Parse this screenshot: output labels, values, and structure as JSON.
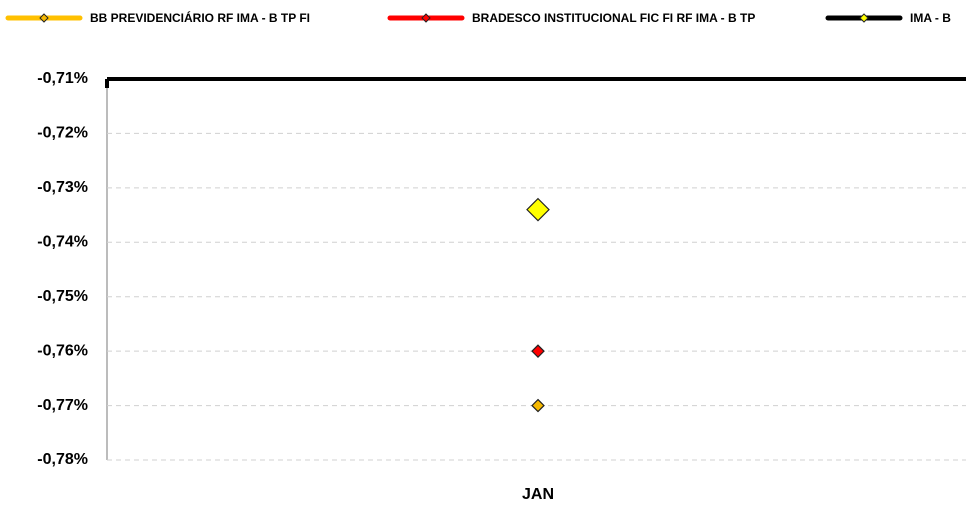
{
  "chart_data": {
    "type": "line",
    "categories": [
      "JAN"
    ],
    "series": [
      {
        "name": "BB PREVIDENCIÁRIO RF IMA - B TP FI",
        "color": "#ffc000",
        "marker_color": "#f5b800",
        "marker_size": 6,
        "values": [
          -0.77
        ]
      },
      {
        "name": "BRADESCO INSTITUCIONAL FIC FI RF IMA - B TP",
        "color": "#ff0000",
        "marker_color": "#ff0000",
        "marker_size": 6,
        "values": [
          -0.76
        ]
      },
      {
        "name": "IMA - B",
        "color": "#000000",
        "marker_color": "#ffff00",
        "marker_size": 11,
        "values": [
          -0.734
        ]
      }
    ],
    "ylim": [
      -0.78,
      -0.71
    ],
    "yticks": [
      {
        "value": -0.78,
        "label": "-0,78%"
      },
      {
        "value": -0.77,
        "label": "-0,77%"
      },
      {
        "value": -0.76,
        "label": "-0,76%"
      },
      {
        "value": -0.75,
        "label": "-0,75%"
      },
      {
        "value": -0.74,
        "label": "-0,74%"
      },
      {
        "value": -0.73,
        "label": "-0,73%"
      },
      {
        "value": -0.72,
        "label": "-0,72%"
      },
      {
        "value": -0.71,
        "label": "-0,71%"
      }
    ],
    "grid": true
  }
}
